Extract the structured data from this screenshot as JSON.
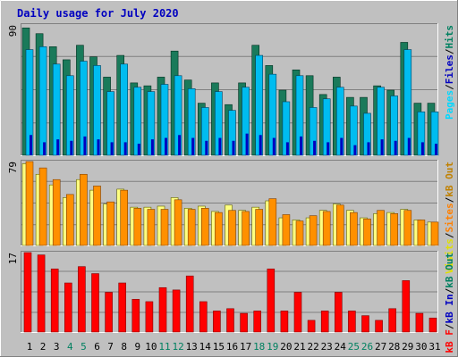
{
  "chart_data": {
    "type": "bar",
    "title": "Daily usage for July 2020",
    "categories": [
      "1",
      "2",
      "3",
      "4",
      "5",
      "6",
      "7",
      "8",
      "9",
      "10",
      "11",
      "12",
      "13",
      "14",
      "15",
      "16",
      "17",
      "18",
      "19",
      "20",
      "21",
      "22",
      "23",
      "24",
      "25",
      "26",
      "27",
      "28",
      "29",
      "30",
      "31"
    ],
    "weekend_days": [
      "4",
      "5",
      "11",
      "12",
      "18",
      "19",
      "25",
      "26"
    ],
    "panels": [
      {
        "ymax": 90,
        "legend": [
          {
            "label": "Pages",
            "color": "#00d8ff"
          },
          {
            "label": "/",
            "color": "#000000"
          },
          {
            "label": "Files",
            "color": "#0000c0"
          },
          {
            "label": "/",
            "color": "#000000"
          },
          {
            "label": "Hits",
            "color": "#008060"
          }
        ],
        "series": [
          {
            "name": "Hits",
            "color": "#1a7a5a",
            "values": [
              88,
              84,
              75,
              66,
              76,
              68,
              54,
              69,
              50,
              48,
              54,
              72,
              52,
              36,
              50,
              35,
              50,
              76,
              62,
              45,
              59,
              55,
              42,
              54,
              40,
              40,
              48,
              45,
              78,
              36,
              36
            ]
          },
          {
            "name": "Files",
            "color": "#00bcf0",
            "values": [
              73,
              75,
              63,
              55,
              65,
              62,
              44,
              63,
              47,
              44,
              49,
              55,
              46,
              33,
              44,
              31,
              47,
              69,
              56,
              37,
              55,
              33,
              39,
              47,
              34,
              29,
              47,
              41,
              73,
              30,
              30
            ]
          },
          {
            "name": "Pages",
            "color": "#0000c0",
            "values": [
              14,
              9,
              11,
              10,
              13,
              11,
              9,
              9,
              8,
              11,
              12,
              14,
              12,
              10,
              12,
              10,
              15,
              14,
              12,
              9,
              13,
              10,
              9,
              12,
              7,
              9,
              11,
              10,
              12,
              9,
              8
            ]
          }
        ]
      },
      {
        "ymax": 79,
        "legend": [
          {
            "label": "Visits",
            "color": "#e0e000"
          },
          {
            "label": "/",
            "color": "#000000"
          },
          {
            "label": "Sites",
            "color": "#ff8000"
          },
          {
            "label": "/",
            "color": "#000000"
          },
          {
            "label": "kB Out",
            "color": "#c08000"
          }
        ],
        "series": [
          {
            "name": "Visits",
            "color": "#ffff80",
            "values": [
              77,
              67,
              57,
              45,
              62,
              52,
              39,
              53,
              36,
              36,
              37,
              45,
              35,
              37,
              32,
              38,
              33,
              36,
              42,
              26,
              24,
              26,
              33,
              39,
              33,
              26,
              30,
              31,
              34,
              24,
              22
            ]
          },
          {
            "name": "Sites",
            "color": "#ff9000",
            "values": [
              79,
              73,
              62,
              48,
              67,
              56,
              41,
              52,
              35,
              34,
              34,
              43,
              34,
              35,
              31,
              33,
              32,
              34,
              44,
              29,
              23,
              28,
              32,
              38,
              31,
              25,
              33,
              30,
              33,
              24,
              22
            ]
          }
        ]
      },
      {
        "ymax": 17,
        "legend": [
          {
            "label": "kB F",
            "color": "#ff0000"
          },
          {
            "label": "/",
            "color": "#000000"
          },
          {
            "label": "kB In",
            "color": "#0000c0"
          },
          {
            "label": "/",
            "color": "#000000"
          },
          {
            "label": "kB Out",
            "color": "#008060"
          }
        ],
        "series": [
          {
            "name": "kB F",
            "color": "#ff0000",
            "values": [
              17,
              16.5,
              13.5,
              10.5,
              14,
              12.5,
              8.5,
              10.5,
              7,
              6.5,
              9.5,
              9,
              12,
              6.5,
              4.5,
              5,
              4,
              4.5,
              13.5,
              4.5,
              8.5,
              2.5,
              4.5,
              8.5,
              4.5,
              3.5,
              2.5,
              5,
              11,
              4,
              3
            ]
          }
        ]
      }
    ]
  },
  "colors": {
    "background": "#c0c0c0",
    "plot_bg": "#c0c0c0",
    "weekend_label": "#008060",
    "weekday_label": "#000000",
    "title": "#0000c0"
  }
}
